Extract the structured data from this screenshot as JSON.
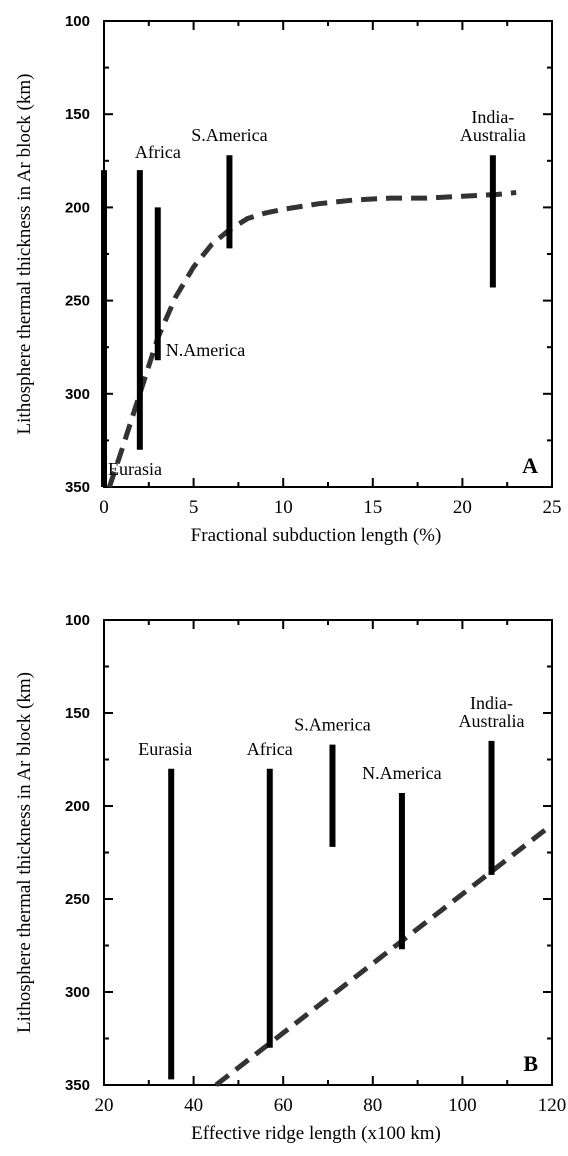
{
  "chart_data": [
    {
      "type": "scatter",
      "panel_label": "A",
      "xlabel": "Fractional subduction length (%)",
      "ylabel": "Lithosphere thermal thickness in Ar block (km)",
      "xlim": [
        0,
        25
      ],
      "ylim": [
        100,
        350
      ],
      "y_inverted": true,
      "xticks": [
        0,
        5,
        10,
        15,
        20,
        25
      ],
      "yticks": [
        100,
        150,
        200,
        250,
        300,
        350
      ],
      "ranges": [
        {
          "name": "Eurasia",
          "x": 0,
          "y_min": 180,
          "y_max": 350
        },
        {
          "name": "Africa",
          "x": 2,
          "y_min": 180,
          "y_max": 330
        },
        {
          "name": "N.America",
          "x": 3,
          "y_min": 200,
          "y_max": 282
        },
        {
          "name": "S.America",
          "x": 7,
          "y_min": 172,
          "y_max": 222
        },
        {
          "name": "India-\nAustralia",
          "x": 21.7,
          "y_min": 172,
          "y_max": 243
        }
      ],
      "fit_curve": {
        "x": [
          0.3,
          1,
          2,
          3,
          4,
          5,
          6,
          7,
          8,
          9,
          10,
          12,
          14,
          16,
          18,
          20,
          22,
          23
        ],
        "y": [
          350,
          330,
          300,
          270,
          248,
          232,
          220,
          212,
          206,
          203,
          201,
          198,
          196,
          195,
          195,
          194,
          193,
          192
        ]
      }
    },
    {
      "type": "scatter",
      "panel_label": "B",
      "xlabel": "Effective ridge length (x100 km)",
      "ylabel": "Lithosphere thermal thickness in Ar block (km)",
      "xlim": [
        20,
        120
      ],
      "ylim": [
        100,
        350
      ],
      "y_inverted": true,
      "xticks": [
        20,
        40,
        60,
        80,
        100,
        120
      ],
      "yticks": [
        100,
        150,
        200,
        250,
        300,
        350
      ],
      "ranges": [
        {
          "name": "Eurasia",
          "x": 35,
          "y_min": 180,
          "y_max": 347
        },
        {
          "name": "Africa",
          "x": 57,
          "y_min": 180,
          "y_max": 330
        },
        {
          "name": "S.America",
          "x": 71,
          "y_min": 167,
          "y_max": 222
        },
        {
          "name": "N.America",
          "x": 86.5,
          "y_min": 193,
          "y_max": 277
        },
        {
          "name": "India-\nAustralia",
          "x": 106.5,
          "y_min": 165,
          "y_max": 237
        }
      ],
      "fit_line": {
        "x": [
          45,
          120
        ],
        "y": [
          350,
          210
        ]
      }
    }
  ]
}
